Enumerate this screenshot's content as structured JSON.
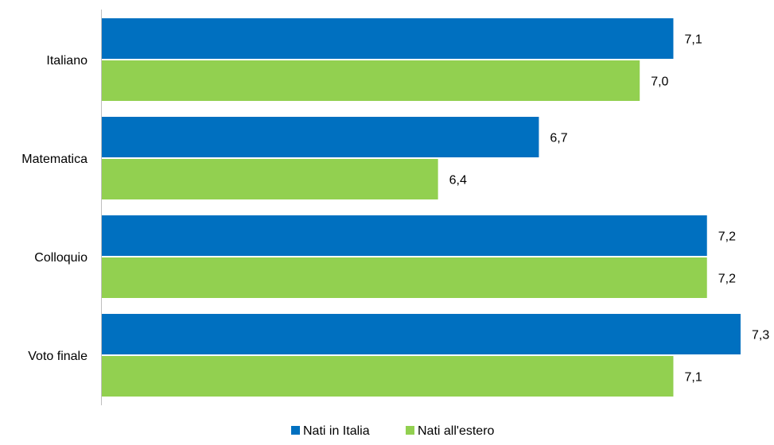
{
  "chart_data": {
    "type": "bar",
    "orientation": "horizontal",
    "categories": [
      "Italiano",
      "Matematica",
      "Colloquio",
      "Voto finale"
    ],
    "series": [
      {
        "name": "Nati in Italia",
        "color": "#0070C0",
        "values": [
          7.1,
          6.7,
          7.2,
          7.3
        ],
        "labels": [
          "7,1",
          "6,7",
          "7,2",
          "7,3"
        ]
      },
      {
        "name": "Nati all'estero",
        "color": "#92D050",
        "values": [
          7.0,
          6.4,
          7.2,
          7.1
        ],
        "labels": [
          "7,0",
          "6,4",
          "7,2",
          "7,1"
        ]
      }
    ],
    "xlim": [
      5.4,
      7.3
    ],
    "grid": false,
    "axis_visible": false,
    "legend_position": "bottom"
  }
}
